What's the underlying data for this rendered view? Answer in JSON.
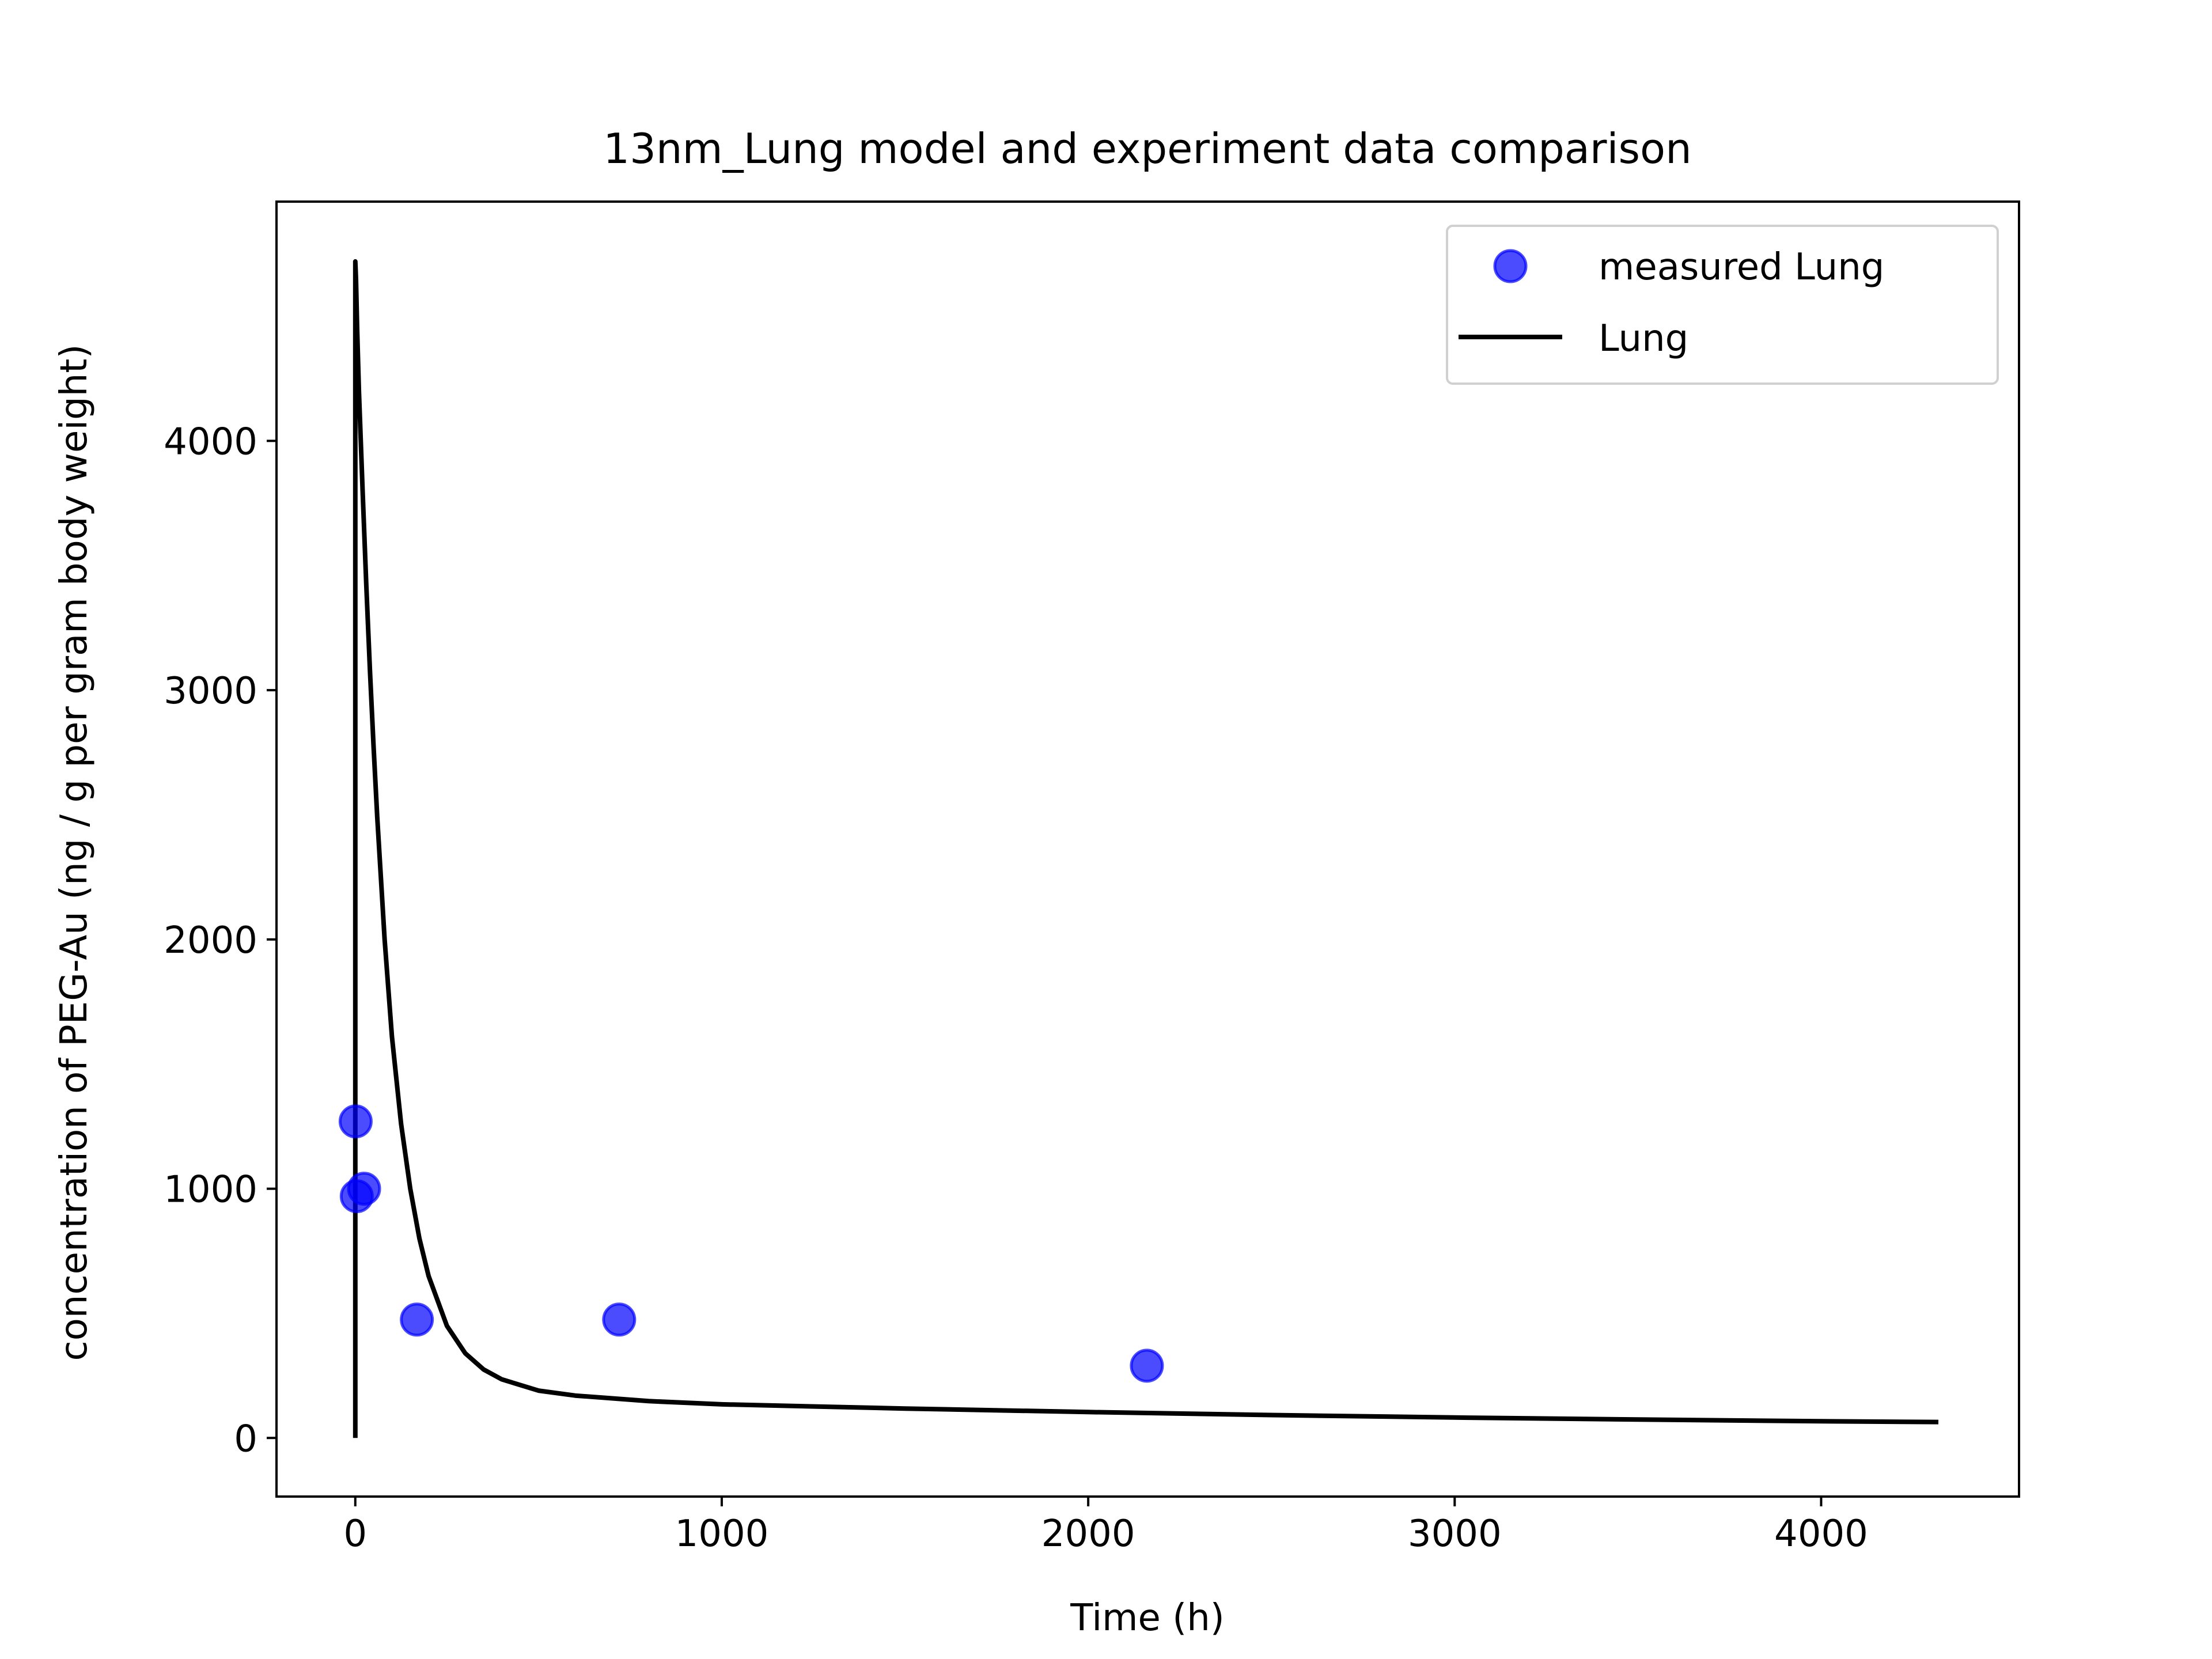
{
  "chart_data": {
    "type": "scatter",
    "title": "13nm_Lung model and experiment data comparison",
    "xlabel": "Time (h)",
    "ylabel": "concentration of PEG-Au (ng / g per gram body weight)",
    "xlim": [
      -215,
      4540
    ],
    "ylim": [
      -235,
      4960
    ],
    "xticks": [
      0,
      1000,
      2000,
      3000,
      4000
    ],
    "yticks": [
      0,
      1000,
      2000,
      3000,
      4000
    ],
    "grid": false,
    "legend_position": "top-right",
    "series": [
      {
        "name": "measured Lung",
        "kind": "scatter",
        "color": "#0000ff",
        "x": [
          1,
          4,
          24,
          168,
          720,
          2160
        ],
        "y": [
          1270,
          970,
          1000,
          475,
          475,
          290
        ]
      },
      {
        "name": "Lung",
        "kind": "line",
        "color": "#000000",
        "x": [
          0,
          0,
          2,
          5,
          10,
          20,
          30,
          40,
          50,
          60,
          80,
          100,
          125,
          150,
          175,
          200,
          250,
          300,
          350,
          400,
          500,
          600,
          800,
          1000,
          1500,
          2000,
          2500,
          3000,
          3500,
          4000,
          4320
        ],
        "y": [
          0,
          4720,
          4650,
          4450,
          4200,
          3800,
          3420,
          3080,
          2770,
          2490,
          2000,
          1610,
          1260,
          1000,
          800,
          650,
          450,
          340,
          275,
          235,
          190,
          170,
          148,
          135,
          118,
          104,
          92,
          82,
          74,
          67,
          64
        ]
      }
    ]
  }
}
